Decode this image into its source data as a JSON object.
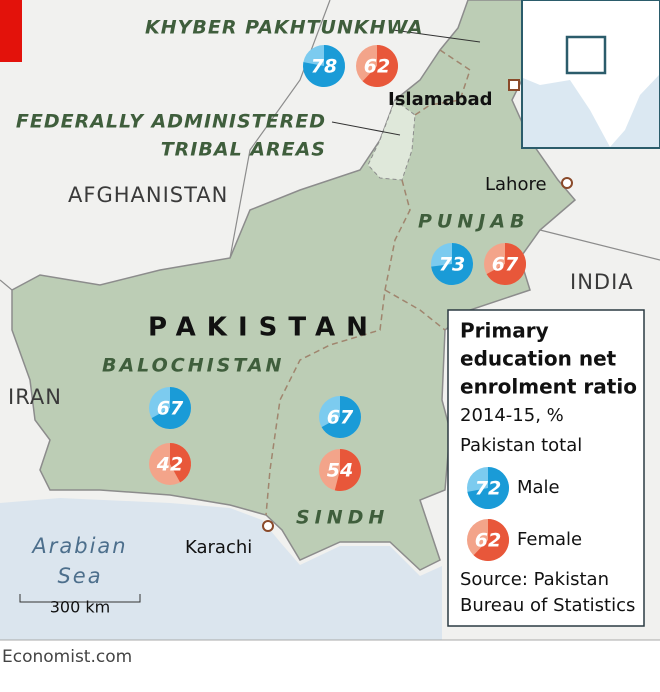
{
  "map": {
    "regions": [
      {
        "name": "KHYBER PAKHTUNKHWA",
        "male": 78,
        "female": 62
      },
      {
        "name": "PUNJAB",
        "male": 73,
        "female": 67
      },
      {
        "name": "BALOCHISTAN",
        "male": 67,
        "female": 42
      },
      {
        "name": "SINDH",
        "male": 67,
        "female": 54
      }
    ],
    "fata_label": [
      "FEDERALLY ADMINISTERED",
      "TRIBAL AREAS"
    ],
    "country": "PAKISTAN",
    "neighbours": [
      "AFGHANISTAN",
      "IRAN",
      "INDIA"
    ],
    "cities": [
      "Islamabad",
      "Lahore",
      "Karachi"
    ],
    "sea": [
      "Arabian",
      "Sea"
    ],
    "scale": "300 km"
  },
  "legend": {
    "title": [
      "Primary",
      "education net",
      "enrolment ratio"
    ],
    "subtitle": "2014-15, %",
    "total_label": "Pakistan total",
    "male": {
      "label": "Male",
      "value": 72
    },
    "female": {
      "label": "Female",
      "value": 62
    },
    "source": [
      "Source: Pakistan",
      "Bureau of Statistics"
    ]
  },
  "footer": "Economist.com"
}
